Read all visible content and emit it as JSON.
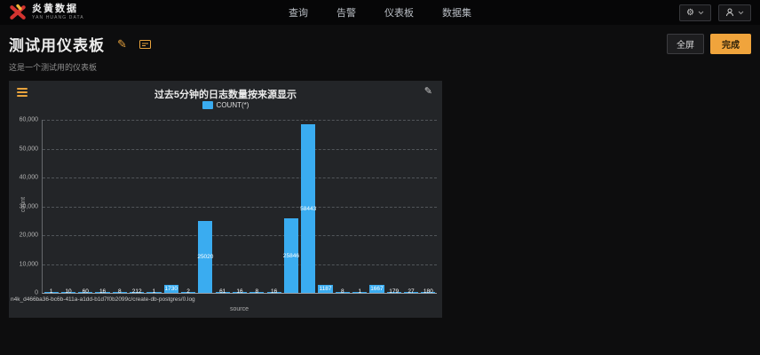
{
  "navbar": {
    "brand": {
      "name": "炎黄数据",
      "subtitle": "YAN HUANG DATA"
    },
    "items": [
      {
        "label": "查询"
      },
      {
        "label": "告警"
      },
      {
        "label": "仪表板"
      },
      {
        "label": "数据集"
      }
    ]
  },
  "header": {
    "title": "测试用仪表板",
    "subtitle": "这是一个测试用的仪表板",
    "fullscreen_label": "全屏",
    "done_label": "完成"
  },
  "panel": {
    "title": "过去5分钟的日志数量按来源显示"
  },
  "chart_data": {
    "type": "bar",
    "title": "过去5分钟的日志数量按来源显示",
    "legend": [
      "COUNT(*)"
    ],
    "legend_position": "top",
    "values": [
      1,
      10,
      60,
      16,
      8,
      212,
      1,
      1730,
      2,
      25020,
      61,
      16,
      8,
      16,
      25846,
      58443,
      1187,
      8,
      1,
      1667,
      179,
      27,
      180
    ],
    "visible_x_tick_label": "n4k_d466ba36-bc6b-411a-a1dd-b1d7f0b2099c/create-db-postgres/0.log",
    "xlabel": "source",
    "ylabel": "count",
    "ylim": [
      0,
      60000
    ],
    "y_ticks": [
      "0",
      "10,000",
      "20,000",
      "30,000",
      "40,000",
      "50,000",
      "60,000"
    ],
    "grid": true,
    "bar_color": "#3aacf0"
  },
  "colors": {
    "accent_orange": "#e8a33d",
    "button_orange": "#f0a43c",
    "bar_blue": "#3aacf0",
    "panel_bg": "#232528",
    "page_bg": "#0d0d0e"
  }
}
